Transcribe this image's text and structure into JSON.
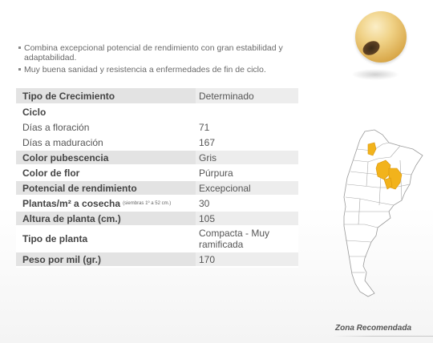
{
  "bullets": [
    "Combina excepcional potencial de rendimiento con gran estabilidad y adaptabilidad.",
    "Muy buena sanidad y resistencia a enfermedades de fin de ciclo."
  ],
  "table": {
    "rows": [
      {
        "label": "Tipo de Crecimiento",
        "value": "Determinado",
        "note": ""
      },
      {
        "label": "Ciclo",
        "value": "",
        "note": ""
      },
      {
        "label": "Días a floración",
        "value": "71",
        "note": ""
      },
      {
        "label": "Días a maduración",
        "value": "167",
        "note": ""
      },
      {
        "label": "Color pubescencia",
        "value": "Gris",
        "note": ""
      },
      {
        "label": "Color de flor",
        "value": "Púrpura",
        "note": ""
      },
      {
        "label": "Potencial de rendimiento",
        "value": "Excepcional",
        "note": ""
      },
      {
        "label": "Plantas/m² a cosecha",
        "value": "30",
        "note": "(siembras 1º a 52 cm.)"
      },
      {
        "label": "Altura de planta (cm.)",
        "value": "105",
        "note": ""
      },
      {
        "label": "Tipo de planta",
        "value": "Compacta - Muy ramificada",
        "note": ""
      },
      {
        "label": "Peso por mil (gr.)",
        "value": "170",
        "note": ""
      }
    ]
  },
  "map": {
    "caption": "Zona Recomendada",
    "highlight_color": "#f2b31c",
    "outline_color": "#9a9a9a"
  },
  "icons": {
    "seed": "soybean-seed-icon"
  }
}
